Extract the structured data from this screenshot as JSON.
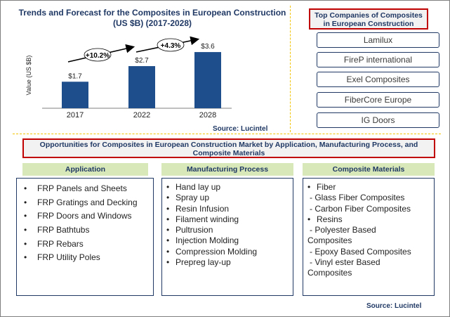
{
  "chart_title_line1": "Trends and Forecast for  the Composites in European Construction",
  "chart_title_line2": "(US $B) (2017-2028)",
  "chart_source": "Source: Lucintel",
  "colors": {
    "bar": "#1f4e8c",
    "accent_border": "#c00000",
    "header_fill": "#d8e8b8",
    "title_text": "#1f3864"
  },
  "chart_data": {
    "type": "bar",
    "categories": [
      "2017",
      "2022",
      "2028"
    ],
    "values": [
      1.7,
      2.7,
      3.6
    ],
    "value_labels": [
      "$1.7",
      "$2.7",
      "$3.6"
    ],
    "ylabel": "Value (US $B)",
    "ylim": [
      0,
      4
    ],
    "grid": false,
    "growth_annotations": [
      "+10.2%",
      "+4.3%"
    ]
  },
  "top_companies": {
    "title": "Top Companies of Composites in European Construction",
    "items": [
      "Lamilux",
      "FireP international",
      "Exel Composites",
      "FiberCore Europe",
      "IG Doors"
    ]
  },
  "opportunities": {
    "title": "Opportunities for Composites in European Construction Market  by Application, Manufacturing Process, and Composite Materials",
    "application": {
      "header": "Application",
      "items": [
        "FRP Panels and Sheets",
        "FRP Gratings and Decking",
        "FRP Doors and Windows",
        "FRP Bathtubs",
        "FRP Rebars",
        "FRP Utility  Poles"
      ]
    },
    "manufacturing": {
      "header": "Manufacturing Process",
      "items": [
        "Hand lay up",
        "Spray up",
        "Resin Infusion",
        "Filament winding",
        "Pultrusion",
        "Injection Molding",
        "Compression Molding",
        "Prepreg lay-up"
      ]
    },
    "materials": {
      "header": "Composite Materials",
      "lines": [
        "Fiber",
        "  Glass Fiber Composites",
        "  Carbon Fiber Composites",
        "Resins",
        "  Polyester  Based",
        "Composites",
        "  Epoxy Based Composites",
        "  Vinyl ester Based",
        "Composites"
      ]
    },
    "source": "Source: Lucintel"
  }
}
